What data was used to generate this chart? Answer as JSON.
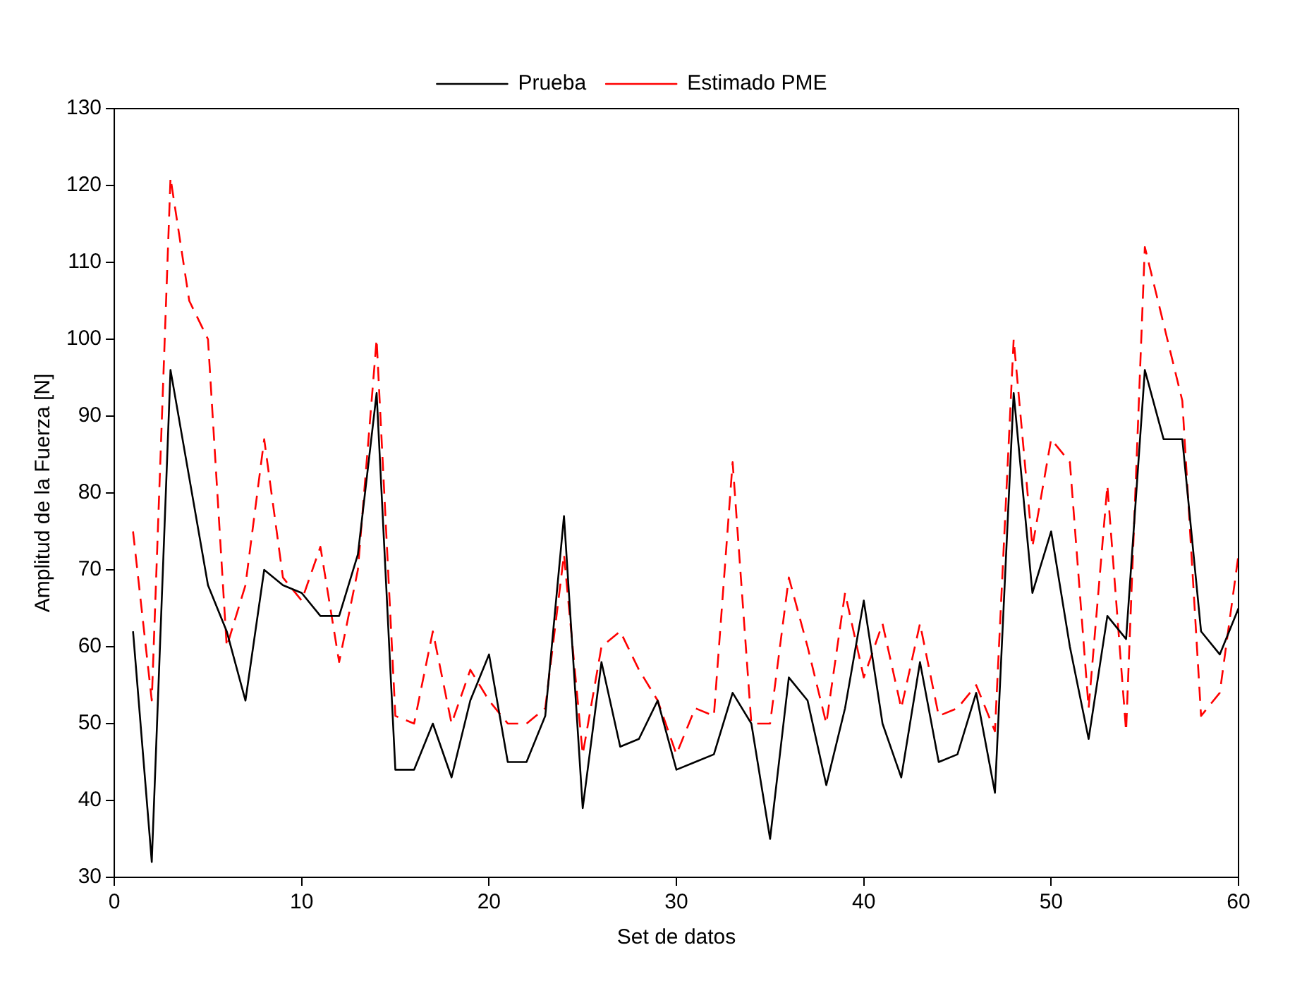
{
  "chart_data": {
    "type": "line",
    "xlabel": "Set de datos",
    "ylabel": "Amplitud de la Fuerza [N]",
    "x": [
      1,
      2,
      3,
      4,
      5,
      6,
      7,
      8,
      9,
      10,
      11,
      12,
      13,
      14,
      15,
      16,
      17,
      18,
      19,
      20,
      21,
      22,
      23,
      24,
      25,
      26,
      27,
      28,
      29,
      30,
      31,
      32,
      33,
      34,
      35,
      36,
      37,
      38,
      39,
      40,
      41,
      42,
      43,
      44,
      45,
      46,
      47,
      48,
      49,
      50,
      51,
      52,
      53,
      54,
      55,
      56,
      57,
      58,
      59,
      60
    ],
    "series": [
      {
        "name": "Prueba",
        "color": "#000000",
        "line_style": "solid",
        "values": [
          62,
          32,
          96,
          82,
          68,
          62,
          53,
          70,
          68,
          67,
          64,
          64,
          72,
          93,
          44,
          44,
          50,
          43,
          53,
          59,
          45,
          45,
          51,
          77,
          39,
          58,
          47,
          48,
          53,
          44,
          45,
          46,
          54,
          50,
          35,
          56,
          53,
          42,
          52,
          66,
          50,
          43,
          58,
          45,
          46,
          54,
          41,
          93,
          67,
          75,
          60,
          48,
          64,
          61,
          96,
          87,
          87,
          62,
          59,
          65
        ]
      },
      {
        "name": "Estimado PME",
        "color": "#ff0000",
        "line_style": "dashed",
        "values": [
          75,
          53,
          121,
          105,
          100,
          60,
          68,
          87,
          69,
          66,
          73,
          58,
          70,
          100,
          51,
          50,
          62,
          50,
          57,
          53,
          50,
          50,
          52,
          72,
          46,
          60,
          62,
          57,
          53,
          46,
          52,
          51,
          84,
          50,
          50,
          69,
          60,
          50,
          67,
          56,
          63,
          52,
          63,
          51,
          52,
          55,
          49,
          100,
          73,
          87,
          84,
          52,
          81,
          49,
          112,
          102,
          92,
          51,
          54,
          72
        ]
      }
    ],
    "xlim": [
      0,
      60
    ],
    "xticks": [
      0,
      10,
      20,
      30,
      40,
      50,
      60
    ],
    "ylim": [
      30,
      130
    ],
    "yticks": [
      30,
      40,
      50,
      60,
      70,
      80,
      90,
      100,
      110,
      120,
      130
    ],
    "grid": false,
    "legend": "top",
    "marker": "none"
  }
}
